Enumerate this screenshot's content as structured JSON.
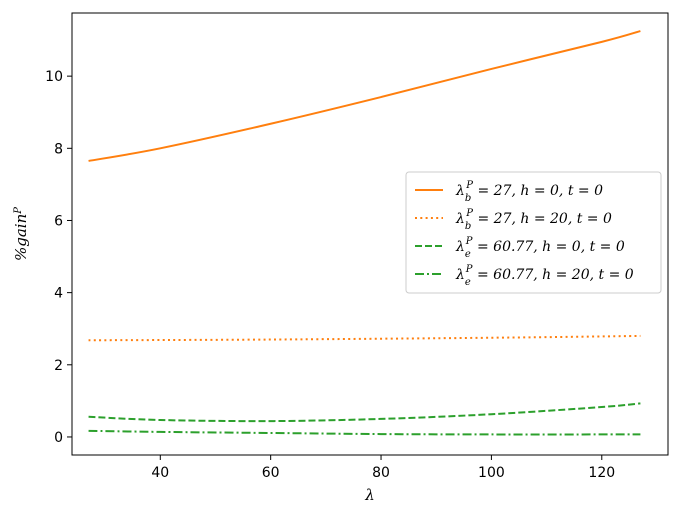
{
  "chart_data": {
    "type": "line",
    "xlabel": "λ",
    "ylabel": "%gain",
    "ylabel_sup": "P",
    "xlim": [
      24,
      132
    ],
    "ylim": [
      -0.5,
      11.75
    ],
    "xticks": [
      40,
      60,
      80,
      100,
      120
    ],
    "yticks": [
      0,
      2,
      4,
      6,
      8,
      10
    ],
    "grid": false,
    "legend_position": "center-right",
    "series": [
      {
        "name": "λ_b^P = 27, h = 0, t = 0",
        "legend": {
          "var": "λ",
          "sub": "b",
          "sup": "P",
          "rest": " = 27, h = 0, t = 0"
        },
        "color": "#ff7f0e",
        "style": "solid",
        "x": [
          27,
          40,
          60,
          80,
          100,
          120,
          127
        ],
        "y": [
          7.65,
          8.0,
          8.68,
          9.42,
          10.2,
          10.95,
          11.25
        ]
      },
      {
        "name": "λ_b^P = 27, h = 20, t = 0",
        "legend": {
          "var": "λ",
          "sub": "b",
          "sup": "P",
          "rest": " = 27, h = 20, t = 0"
        },
        "color": "#ff7f0e",
        "style": "dotted",
        "x": [
          27,
          60,
          100,
          127
        ],
        "y": [
          2.68,
          2.7,
          2.75,
          2.8
        ]
      },
      {
        "name": "λ_e^P = 60.77, h = 0, t = 0",
        "legend": {
          "var": "λ",
          "sub": "e",
          "sup": "P",
          "rest": " = 60.77, h = 0, t = 0"
        },
        "color": "#2ca02c",
        "style": "dashed",
        "x": [
          27,
          40,
          60,
          80,
          100,
          120,
          127
        ],
        "y": [
          0.56,
          0.47,
          0.44,
          0.5,
          0.63,
          0.83,
          0.93
        ]
      },
      {
        "name": "λ_e^P = 60.77, h = 20, t = 0",
        "legend": {
          "var": "λ",
          "sub": "e",
          "sup": "P",
          "rest": " = 60.77, h = 20, t = 0"
        },
        "color": "#2ca02c",
        "style": "dashdot",
        "x": [
          27,
          40,
          60,
          80,
          100,
          120,
          127
        ],
        "y": [
          0.17,
          0.14,
          0.11,
          0.08,
          0.07,
          0.07,
          0.07
        ]
      }
    ]
  }
}
